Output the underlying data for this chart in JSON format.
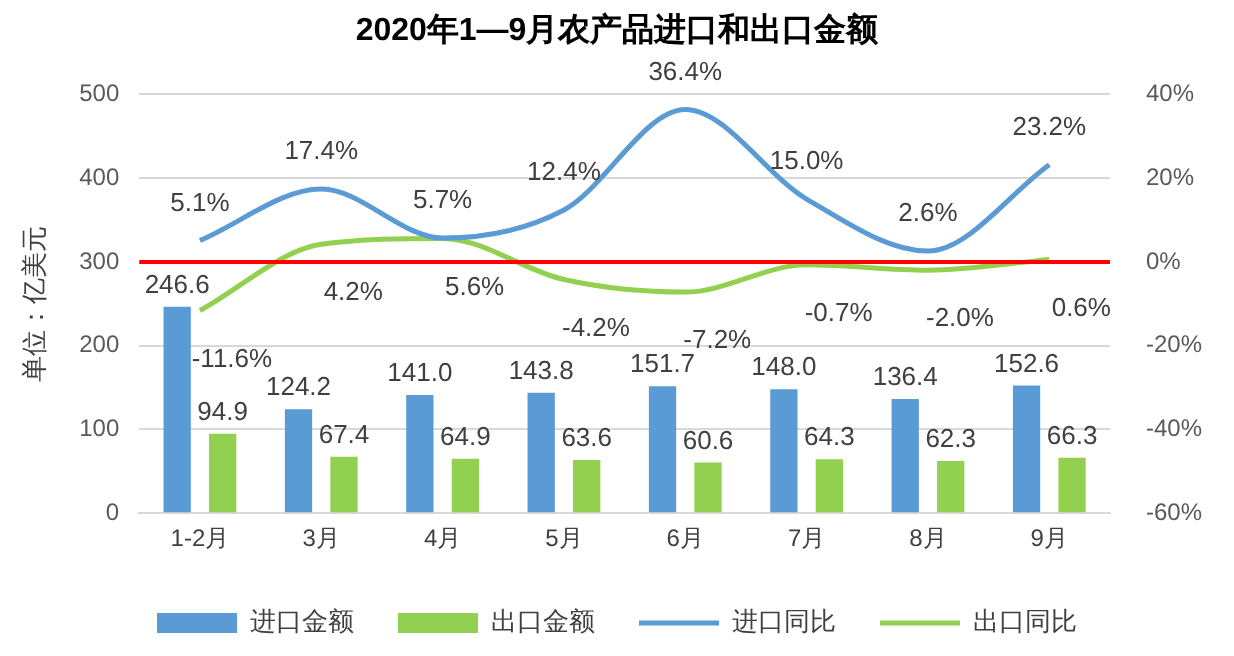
{
  "chart_data": {
    "type": "bar",
    "title": "2020年1—9月农产品进口和出口金额",
    "ylabel": "单位：亿美元",
    "categories": [
      "1-2月",
      "3月",
      "4月",
      "5月",
      "6月",
      "7月",
      "8月",
      "9月"
    ],
    "series": [
      {
        "name": "进口金额",
        "color": "#5b9bd5",
        "values": [
          246.6,
          124.2,
          141.0,
          143.8,
          151.7,
          148.0,
          136.4,
          152.6
        ],
        "value_labels": [
          "246.6",
          "124.2",
          "141.0",
          "143.8",
          "151.7",
          "148.0",
          "136.4",
          "152.6"
        ]
      },
      {
        "name": "出口金额",
        "color": "#92d050",
        "values": [
          94.9,
          67.4,
          64.9,
          63.6,
          60.6,
          64.3,
          62.3,
          66.3
        ],
        "value_labels": [
          "94.9",
          "67.4",
          "64.9",
          "63.6",
          "60.6",
          "64.3",
          "62.3",
          "66.3"
        ]
      },
      {
        "name": "进口同比",
        "type": "line",
        "axis": "y2",
        "color": "#5b9bd5",
        "values": [
          5.1,
          17.4,
          5.7,
          12.4,
          36.4,
          15.0,
          2.6,
          23.2
        ],
        "value_labels": [
          "5.1%",
          "17.4%",
          "5.7%",
          "12.4%",
          "36.4%",
          "15.0%",
          "2.6%",
          "23.2%"
        ]
      },
      {
        "name": "出口同比",
        "type": "line",
        "axis": "y2",
        "color": "#92d050",
        "values": [
          -11.6,
          4.2,
          5.6,
          -4.2,
          -7.2,
          -0.7,
          -2.0,
          0.6
        ],
        "value_labels": [
          "-11.6%",
          "4.2%",
          "5.6%",
          "-4.2%",
          "-7.2%",
          "-0.7%",
          "-2.0%",
          "0.6%"
        ]
      }
    ],
    "ylim": [
      0,
      500
    ],
    "yticks": [
      0,
      100,
      200,
      300,
      400,
      500
    ],
    "y2lim": [
      -60,
      40
    ],
    "y2ticks": [
      {
        "value": -60,
        "label": "-60%"
      },
      {
        "value": -40,
        "label": "-40%"
      },
      {
        "value": -20,
        "label": "-20%"
      },
      {
        "value": 0,
        "label": "0%"
      },
      {
        "value": 20,
        "label": "20%"
      },
      {
        "value": 40,
        "label": "40%"
      }
    ],
    "ref_lines": [
      {
        "axis": "y2",
        "value": 0,
        "color": "#ff0000"
      }
    ],
    "grid": "y",
    "legend": "bottom",
    "marker": "none",
    "line_style": "solid"
  }
}
